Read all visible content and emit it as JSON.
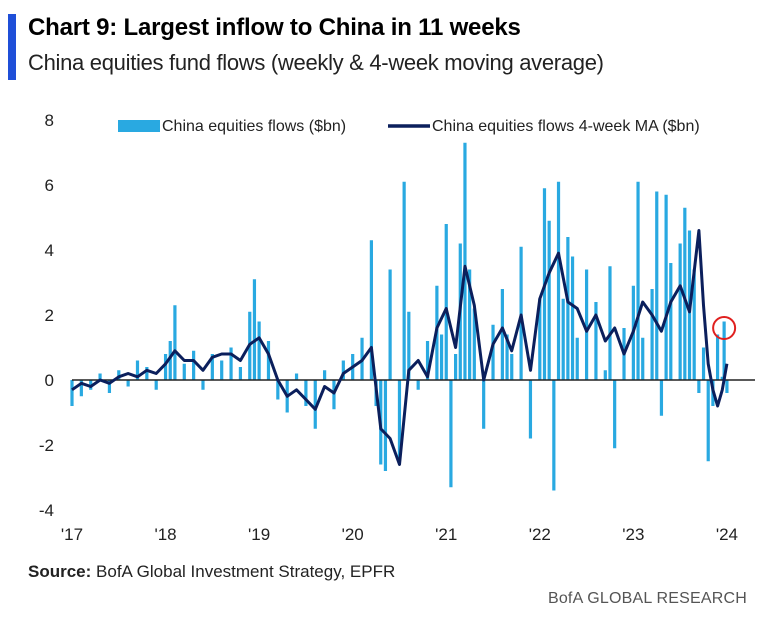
{
  "header": {
    "title": "Chart 9: Largest inflow to China in 11 weeks",
    "subtitle": "China equities fund flows (weekly & 4-week moving average)"
  },
  "footer": {
    "source_label": "Source:",
    "source_text": "BofA Global Investment Strategy, EPFR",
    "brand": "BofA GLOBAL RESEARCH"
  },
  "colors": {
    "accent_bar": "#1f4fd8",
    "bars": "#29a9e1",
    "ma_line": "#0b1f5c",
    "highlight_circle": "#e0201f",
    "axis": "#222222"
  },
  "chart_data": {
    "type": "bar",
    "title": "Chart 9: Largest inflow to China in 11 weeks",
    "subtitle": "China equities fund flows (weekly & 4-week moving average)",
    "xlabel": "",
    "ylabel": "",
    "ylim": [
      -4,
      8
    ],
    "yticks": [
      -4,
      -2,
      0,
      2,
      4,
      6,
      8
    ],
    "xlim": [
      2017.0,
      2024.3
    ],
    "xticks": [
      2017,
      2018,
      2019,
      2020,
      2021,
      2022,
      2023,
      2024
    ],
    "xtick_labels": [
      "'17",
      "'18",
      "'19",
      "'20",
      "'21",
      "'22",
      "'23",
      "'24"
    ],
    "grid": false,
    "legend": "top",
    "highlight": {
      "x": 2023.97,
      "y": 1.6,
      "shape": "circle"
    },
    "series": [
      {
        "name": "China equities flows ($bn)",
        "type": "bar",
        "x": [
          2017.0,
          2017.1,
          2017.2,
          2017.3,
          2017.4,
          2017.5,
          2017.6,
          2017.7,
          2017.8,
          2017.9,
          2018.0,
          2018.05,
          2018.1,
          2018.2,
          2018.3,
          2018.4,
          2018.5,
          2018.6,
          2018.7,
          2018.8,
          2018.9,
          2018.95,
          2019.0,
          2019.1,
          2019.2,
          2019.3,
          2019.4,
          2019.5,
          2019.6,
          2019.7,
          2019.8,
          2019.9,
          2020.0,
          2020.1,
          2020.2,
          2020.25,
          2020.3,
          2020.35,
          2020.4,
          2020.5,
          2020.55,
          2020.6,
          2020.7,
          2020.8,
          2020.9,
          2020.95,
          2021.0,
          2021.05,
          2021.1,
          2021.15,
          2021.2,
          2021.25,
          2021.3,
          2021.4,
          2021.5,
          2021.6,
          2021.65,
          2021.7,
          2021.8,
          2021.9,
          2022.0,
          2022.05,
          2022.1,
          2022.15,
          2022.2,
          2022.25,
          2022.3,
          2022.35,
          2022.4,
          2022.5,
          2022.6,
          2022.7,
          2022.75,
          2022.8,
          2022.9,
          2023.0,
          2023.05,
          2023.1,
          2023.2,
          2023.25,
          2023.3,
          2023.35,
          2023.4,
          2023.5,
          2023.55,
          2023.6,
          2023.65,
          2023.7,
          2023.75,
          2023.8,
          2023.85,
          2023.9,
          2023.95,
          2023.97,
          2024.0
        ],
        "values": [
          -0.8,
          -0.5,
          -0.3,
          0.2,
          -0.4,
          0.3,
          -0.2,
          0.6,
          0.4,
          -0.3,
          0.8,
          1.2,
          2.3,
          0.5,
          0.9,
          -0.3,
          0.8,
          0.6,
          1.0,
          0.4,
          2.1,
          3.1,
          1.8,
          1.2,
          -0.6,
          -1.0,
          0.2,
          -0.8,
          -1.5,
          0.3,
          -0.9,
          0.6,
          0.8,
          1.3,
          4.3,
          -0.8,
          -2.6,
          -2.8,
          3.4,
          -2.5,
          6.1,
          2.1,
          -0.3,
          1.2,
          2.9,
          1.4,
          4.8,
          -3.3,
          0.8,
          4.2,
          7.3,
          3.4,
          2.2,
          -1.5,
          1.7,
          2.8,
          1.4,
          0.8,
          4.1,
          -1.8,
          2.5,
          5.9,
          4.9,
          -3.4,
          6.1,
          2.5,
          4.4,
          3.8,
          1.3,
          3.4,
          2.4,
          0.3,
          3.5,
          -2.1,
          1.6,
          2.9,
          6.1,
          1.3,
          2.8,
          5.8,
          -1.1,
          5.7,
          3.6,
          4.2,
          5.3,
          4.6,
          3.4,
          -0.4,
          1.0,
          -2.5,
          -0.8,
          1.4,
          0.1,
          1.8,
          -0.4
        ]
      },
      {
        "name": "China equities flows 4-week MA ($bn)",
        "type": "line",
        "x": [
          2017.0,
          2017.1,
          2017.2,
          2017.3,
          2017.4,
          2017.5,
          2017.6,
          2017.7,
          2017.8,
          2017.9,
          2018.0,
          2018.1,
          2018.2,
          2018.3,
          2018.4,
          2018.5,
          2018.6,
          2018.7,
          2018.8,
          2018.9,
          2019.0,
          2019.1,
          2019.2,
          2019.3,
          2019.4,
          2019.5,
          2019.6,
          2019.7,
          2019.8,
          2019.9,
          2020.0,
          2020.1,
          2020.2,
          2020.3,
          2020.4,
          2020.5,
          2020.6,
          2020.7,
          2020.8,
          2020.9,
          2021.0,
          2021.1,
          2021.2,
          2021.3,
          2021.4,
          2021.5,
          2021.6,
          2021.7,
          2021.8,
          2021.9,
          2022.0,
          2022.1,
          2022.2,
          2022.3,
          2022.4,
          2022.5,
          2022.6,
          2022.7,
          2022.8,
          2022.9,
          2023.0,
          2023.1,
          2023.2,
          2023.3,
          2023.4,
          2023.5,
          2023.6,
          2023.7,
          2023.75,
          2023.8,
          2023.85,
          2023.9,
          2023.95,
          2024.0
        ],
        "values": [
          -0.3,
          -0.1,
          -0.2,
          0.0,
          -0.1,
          0.1,
          0.2,
          0.1,
          0.3,
          0.2,
          0.5,
          0.9,
          0.6,
          0.6,
          0.3,
          0.7,
          0.8,
          0.8,
          0.6,
          1.1,
          1.3,
          0.8,
          0.0,
          -0.5,
          -0.3,
          -0.6,
          -0.9,
          -0.2,
          -0.4,
          0.2,
          0.4,
          0.6,
          1.0,
          -1.5,
          -1.8,
          -2.6,
          0.3,
          0.6,
          0.1,
          1.6,
          2.2,
          1.0,
          3.5,
          2.3,
          0.0,
          1.1,
          1.6,
          0.9,
          2.0,
          0.3,
          2.5,
          3.3,
          3.9,
          2.4,
          2.2,
          1.5,
          2.0,
          1.2,
          1.6,
          0.8,
          1.5,
          2.4,
          2.0,
          1.5,
          2.4,
          2.9,
          2.1,
          4.6,
          2.3,
          0.5,
          -0.3,
          -0.8,
          -0.3,
          0.5
        ]
      }
    ]
  }
}
